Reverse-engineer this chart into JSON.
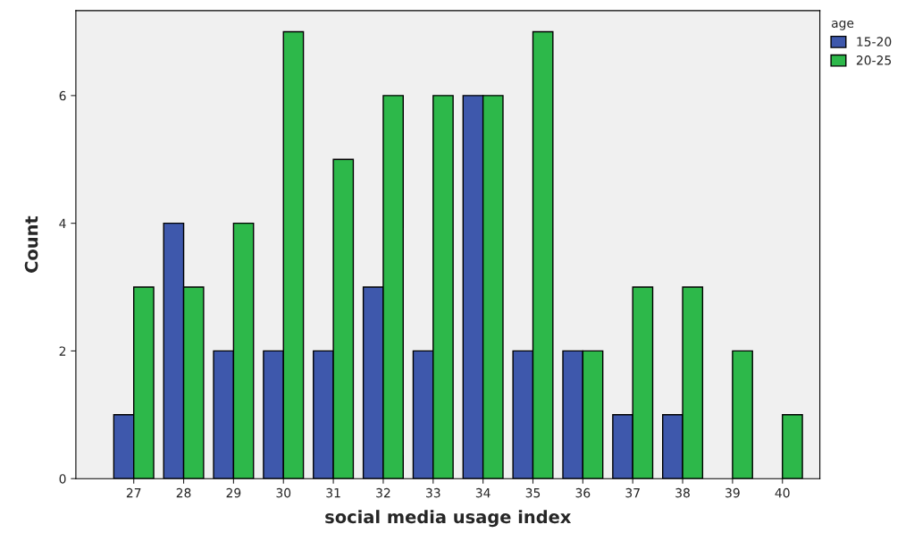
{
  "chart_data": {
    "type": "bar",
    "xlabel": "social media usage index",
    "ylabel": "Count",
    "legend_title": "age",
    "categories": [
      "27",
      "28",
      "29",
      "30",
      "31",
      "32",
      "33",
      "34",
      "35",
      "36",
      "37",
      "38",
      "39",
      "40"
    ],
    "series": [
      {
        "name": "15-20",
        "color": "#3e58ac",
        "values": [
          1,
          4,
          2,
          2,
          2,
          3,
          2,
          6,
          2,
          2,
          1,
          1,
          null,
          null
        ]
      },
      {
        "name": "20-25",
        "color": "#2db84a",
        "values": [
          3,
          3,
          4,
          7,
          5,
          6,
          6,
          6,
          7,
          2,
          3,
          3,
          2,
          1
        ]
      }
    ],
    "ylim": [
      0,
      7.33
    ],
    "yticks": [
      0,
      2,
      4,
      6
    ],
    "grid": false,
    "legend": "top right"
  }
}
